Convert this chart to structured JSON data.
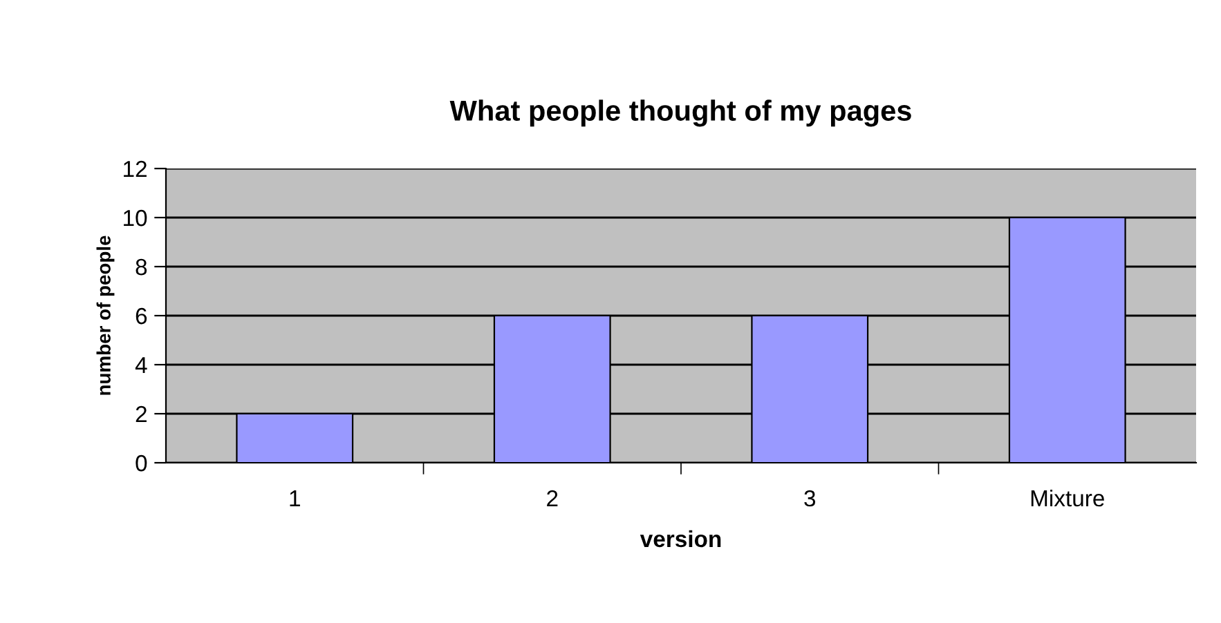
{
  "chart_data": {
    "type": "bar",
    "title": "What people thought of my pages",
    "xlabel": "version",
    "ylabel": "number of people",
    "categories": [
      "1",
      "2",
      "3",
      "Mixture"
    ],
    "values": [
      2,
      6,
      6,
      10
    ],
    "color": "#9999ff",
    "ylim": [
      0,
      12
    ],
    "yticks": [
      0,
      2,
      4,
      6,
      8,
      10,
      12
    ],
    "grid": "y",
    "legend": false
  }
}
